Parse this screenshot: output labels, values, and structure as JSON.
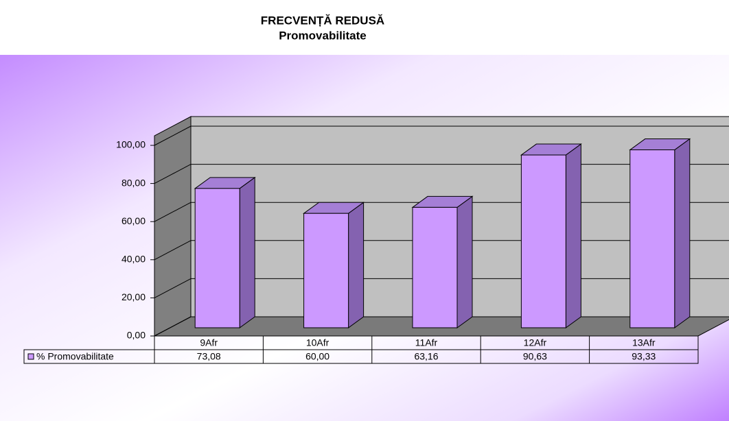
{
  "chart_data": {
    "type": "bar",
    "title": "FRECVENȚĂ REDUSĂ",
    "subtitle": "Promovabilitate",
    "categories": [
      "9Afr",
      "10Afr",
      "11Afr",
      "12Afr",
      "13Afr"
    ],
    "series": [
      {
        "name": "% Promovabilitate",
        "color": "#cc99ff",
        "values": [
          73.08,
          60.0,
          63.16,
          90.63,
          93.33
        ],
        "value_labels": [
          "73,08",
          "60,00",
          "63,16",
          "90,63",
          "93,33"
        ]
      }
    ],
    "ylim": [
      0,
      100
    ],
    "yticks": [
      {
        "value": 0,
        "label": "0,00"
      },
      {
        "value": 20,
        "label": "20,00"
      },
      {
        "value": 40,
        "label": "40,00"
      },
      {
        "value": 60,
        "label": "60,00"
      },
      {
        "value": 80,
        "label": "80,00"
      },
      {
        "value": 100,
        "label": "100,00"
      }
    ],
    "grid": true
  }
}
